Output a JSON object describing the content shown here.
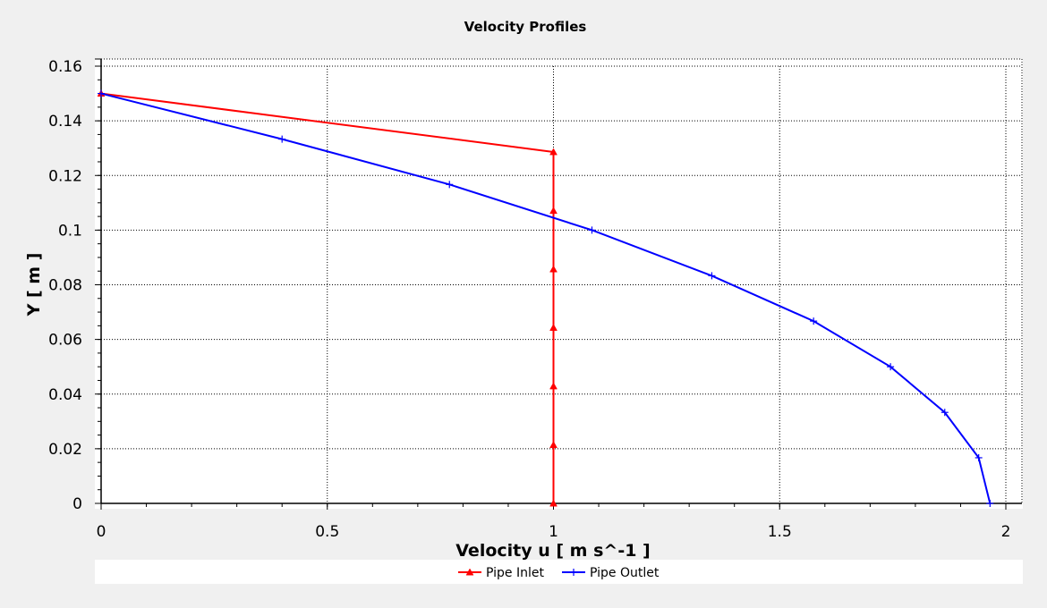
{
  "chart_data": {
    "type": "line",
    "title": "Velocity Profiles",
    "xlabel": "Velocity u [ m s^-1 ]",
    "ylabel": "Y [ m ]",
    "xlim": [
      0,
      2
    ],
    "ylim": [
      0,
      0.16
    ],
    "xticks": [
      "0",
      "0.5",
      "1",
      "1.5",
      "2"
    ],
    "yticks": [
      "0",
      "0.02",
      "0.04",
      "0.06",
      "0.08",
      "0.1",
      "0.12",
      "0.14",
      "0.16"
    ],
    "grid": true,
    "legend_position": "bottom",
    "series": [
      {
        "name": "Pipe Inlet",
        "color": "#ff0000",
        "marker": "triangle",
        "points": [
          [
            0,
            0.15
          ],
          [
            1,
            0.1286
          ],
          [
            1,
            0.1071
          ],
          [
            1,
            0.0857
          ],
          [
            1,
            0.0643
          ],
          [
            1,
            0.0429
          ],
          [
            1,
            0.0214
          ],
          [
            1,
            0
          ]
        ]
      },
      {
        "name": "Pipe Outlet",
        "color": "#0000ff",
        "marker": "plus",
        "points": [
          [
            0,
            0.15
          ],
          [
            0.4,
            0.1333
          ],
          [
            0.77,
            0.1167
          ],
          [
            1.085,
            0.1
          ],
          [
            1.35,
            0.0833
          ],
          [
            1.575,
            0.0667
          ],
          [
            1.745,
            0.05
          ],
          [
            1.865,
            0.0333
          ],
          [
            1.94,
            0.0167
          ],
          [
            1.965,
            0
          ]
        ]
      }
    ]
  }
}
